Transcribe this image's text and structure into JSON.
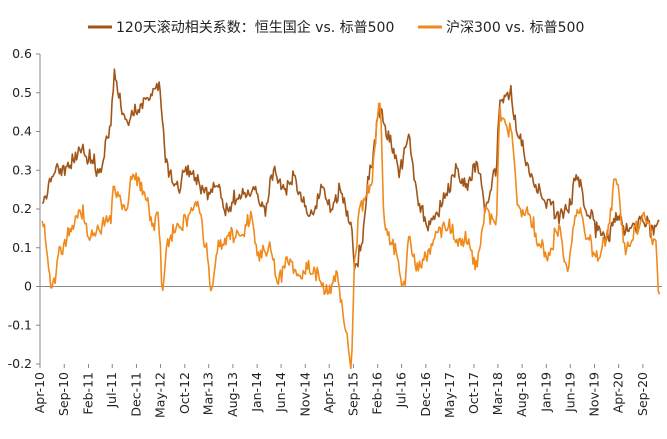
{
  "chart_data": {
    "type": "line",
    "title": "",
    "xlabel": "",
    "ylabel": "",
    "x_range": [
      "2010-04-01",
      "2020-12-31"
    ],
    "ylim": [
      -0.2,
      0.6
    ],
    "y_ticks": [
      -0.2,
      -0.1,
      0,
      0.1,
      0.2,
      0.3,
      0.4,
      0.5,
      0.6
    ],
    "y_tick_labels": [
      "-0.2",
      "-0.1",
      "0",
      "0.1",
      "0.2",
      "0.3",
      "0.4",
      "0.5",
      "0.6"
    ],
    "x_tick_labels": [
      "Apr-10",
      "Sep-10",
      "Feb-11",
      "Jul-11",
      "Dec-11",
      "May-12",
      "Oct-12",
      "Mar-13",
      "Aug-13",
      "Jan-14",
      "Jun-14",
      "Nov-14",
      "Apr-15",
      "Sep-15",
      "Feb-16",
      "Jul-16",
      "Dec-16",
      "May-17",
      "Oct-17",
      "Mar-18",
      "Aug-18",
      "Jan-19",
      "Jun-19",
      "Nov-19",
      "Apr-20",
      "Sep-20"
    ],
    "x_ticks": [
      "2010-04-01",
      "2010-09-01",
      "2011-02-01",
      "2011-07-01",
      "2011-12-01",
      "2012-05-01",
      "2012-10-01",
      "2013-03-01",
      "2013-08-01",
      "2014-01-01",
      "2014-06-01",
      "2014-11-01",
      "2015-04-01",
      "2015-09-01",
      "2016-02-01",
      "2016-07-01",
      "2016-12-01",
      "2017-05-01",
      "2017-10-01",
      "2018-03-01",
      "2018-08-01",
      "2019-01-01",
      "2019-06-01",
      "2019-11-01",
      "2020-04-01",
      "2020-09-01"
    ],
    "grid": false,
    "legend_position": "top",
    "series": [
      {
        "name": "120天滚动相关系数：恒生国企 vs. 标普500",
        "color": "#a0561a",
        "x": [
          "2010-04",
          "2010-06",
          "2010-08",
          "2010-10",
          "2010-12",
          "2011-02",
          "2011-04",
          "2011-06",
          "2011-07",
          "2011-09",
          "2011-11",
          "2012-01",
          "2012-03",
          "2012-04",
          "2012-06",
          "2012-08",
          "2012-10",
          "2012-12",
          "2013-02",
          "2013-04",
          "2013-06",
          "2013-08",
          "2013-10",
          "2013-12",
          "2014-02",
          "2014-04",
          "2014-06",
          "2014-08",
          "2014-10",
          "2014-12",
          "2015-02",
          "2015-04",
          "2015-06",
          "2015-08",
          "2015-09",
          "2015-10",
          "2015-12",
          "2016-02",
          "2016-04",
          "2016-06",
          "2016-08",
          "2016-10",
          "2016-12",
          "2017-02",
          "2017-04",
          "2017-06",
          "2017-08",
          "2017-10",
          "2017-12",
          "2018-02",
          "2018-03",
          "2018-05",
          "2018-07",
          "2018-09",
          "2018-11",
          "2019-01",
          "2019-03",
          "2019-05",
          "2019-07",
          "2019-09",
          "2019-11",
          "2020-01",
          "2020-03",
          "2020-05",
          "2020-07",
          "2020-09",
          "2020-11",
          "2020-12"
        ],
        "values": [
          0.2,
          0.28,
          0.3,
          0.32,
          0.35,
          0.33,
          0.3,
          0.4,
          0.55,
          0.43,
          0.45,
          0.48,
          0.5,
          0.53,
          0.3,
          0.26,
          0.3,
          0.28,
          0.24,
          0.27,
          0.2,
          0.23,
          0.24,
          0.26,
          0.2,
          0.3,
          0.25,
          0.28,
          0.22,
          0.18,
          0.26,
          0.2,
          0.25,
          0.15,
          0.04,
          0.1,
          0.3,
          0.45,
          0.38,
          0.3,
          0.38,
          0.22,
          0.15,
          0.2,
          0.25,
          0.3,
          0.26,
          0.32,
          0.2,
          0.3,
          0.48,
          0.5,
          0.38,
          0.3,
          0.25,
          0.22,
          0.18,
          0.2,
          0.28,
          0.2,
          0.15,
          0.12,
          0.18,
          0.15,
          0.16,
          0.17,
          0.14,
          0.17
        ]
      },
      {
        "name": "沪深300 vs. 标普500",
        "color": "#f08a1c",
        "x": [
          "2010-04",
          "2010-06",
          "2010-08",
          "2010-10",
          "2010-12",
          "2011-02",
          "2011-04",
          "2011-06",
          "2011-07",
          "2011-09",
          "2011-11",
          "2012-01",
          "2012-03",
          "2012-04",
          "2012-05",
          "2012-06",
          "2012-08",
          "2012-10",
          "2012-12",
          "2013-02",
          "2013-03",
          "2013-05",
          "2013-07",
          "2013-09",
          "2013-11",
          "2014-01",
          "2014-03",
          "2014-05",
          "2014-07",
          "2014-09",
          "2014-11",
          "2015-01",
          "2015-03",
          "2015-05",
          "2015-07",
          "2015-08",
          "2015-09",
          "2015-10",
          "2015-12",
          "2016-02",
          "2016-03",
          "2016-05",
          "2016-07",
          "2016-08",
          "2016-10",
          "2016-12",
          "2017-02",
          "2017-04",
          "2017-06",
          "2017-08",
          "2017-10",
          "2017-12",
          "2018-02",
          "2018-03",
          "2018-05",
          "2018-07",
          "2018-09",
          "2018-11",
          "2019-01",
          "2019-03",
          "2019-05",
          "2019-07",
          "2019-09",
          "2019-11",
          "2020-01",
          "2020-03",
          "2020-05",
          "2020-07",
          "2020-09",
          "2020-11",
          "2020-12"
        ],
        "values": [
          0.17,
          0.0,
          0.1,
          0.15,
          0.2,
          0.12,
          0.15,
          0.17,
          0.25,
          0.2,
          0.28,
          0.25,
          0.15,
          0.18,
          0.0,
          0.12,
          0.15,
          0.17,
          0.22,
          0.1,
          0.0,
          0.12,
          0.14,
          0.13,
          0.18,
          0.08,
          0.1,
          0.02,
          0.07,
          0.03,
          0.05,
          0.03,
          -0.02,
          0.02,
          -0.1,
          -0.2,
          0.1,
          0.2,
          0.25,
          0.48,
          0.15,
          0.1,
          0.0,
          0.12,
          0.05,
          0.08,
          0.14,
          0.16,
          0.12,
          0.12,
          0.05,
          0.2,
          0.15,
          0.45,
          0.4,
          0.2,
          0.18,
          0.12,
          0.08,
          0.15,
          0.05,
          0.2,
          0.13,
          0.07,
          0.12,
          0.28,
          0.1,
          0.15,
          0.18,
          0.12,
          -0.02
        ]
      }
    ]
  }
}
